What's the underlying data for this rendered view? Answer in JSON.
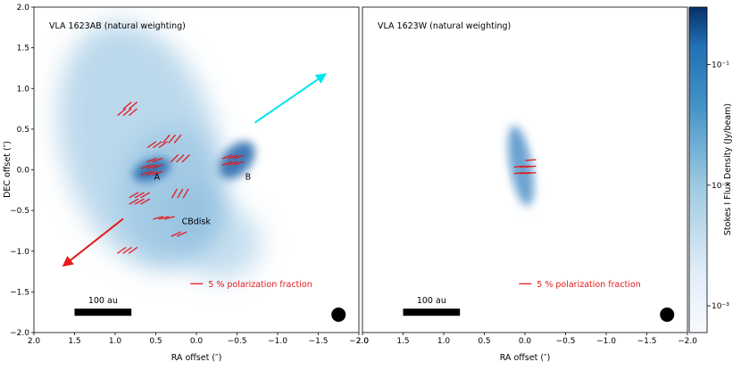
{
  "chart_data": {
    "type": "heatmap",
    "colors": {
      "vector": "#e41a1c",
      "outflow_arrow_cyan": "#00e5ee",
      "outflow_arrow_red": "#e41a1c",
      "colormap_low": "#f7fbff",
      "colormap_high": "#08306b"
    },
    "xlabel": "RA offset (″)",
    "ylabel": "DEC offset (″)",
    "xlim": [
      2.0,
      -2.0
    ],
    "ylim": [
      -2.0,
      2.0
    ],
    "x_ticks": [
      "2.0",
      "1.5",
      "1.0",
      "0.5",
      "0.0",
      "−0.5",
      "−1.0",
      "−1.5",
      "−2.0"
    ],
    "y_ticks": [
      "2.0",
      "1.5",
      "1.0",
      "0.5",
      "0.0",
      "−0.5",
      "−1.0",
      "−1.5",
      "−2.0"
    ],
    "colorbar": {
      "label": "Stokes I Flux Density (Jy/beam)",
      "scale": "log",
      "tick_labels": [
        "10⁻¹",
        "10⁻²",
        "10⁻³"
      ],
      "tick_values": [
        0.1,
        0.01,
        0.001
      ],
      "range": [
        0.0006,
        0.3
      ]
    },
    "panels": [
      {
        "title": "VLA 1623AB (natural weighting)",
        "scalebar_label": "100 au",
        "scalebar_x": [
          1.5,
          0.8
        ],
        "scalebar_y": -1.75,
        "pol_legend": "5 % polarization fraction",
        "pol_legend_pos": [
          -0.08,
          -1.4
        ],
        "beam_pos": [
          -1.75,
          -1.78
        ],
        "sources": [
          {
            "label": "A",
            "x": 0.52,
            "y": -0.12
          },
          {
            "label": "B",
            "x": -0.6,
            "y": -0.12
          },
          {
            "label": "CBdisk",
            "x": 0.18,
            "y": -0.67
          }
        ],
        "arrows": [
          {
            "color": "cyan",
            "from": [
              -0.72,
              0.58
            ],
            "to": [
              -1.55,
              1.15
            ]
          },
          {
            "color": "red",
            "from": [
              0.9,
              -0.6
            ],
            "to": [
              1.6,
              -1.15
            ]
          }
        ],
        "blobs": [
          {
            "x": 0.7,
            "y": 0.3,
            "sx": 0.95,
            "sy": 1.55,
            "angle": -15,
            "amp": 0.35
          },
          {
            "x": 0.3,
            "y": -0.3,
            "sx": 0.65,
            "sy": 0.85,
            "angle": 0,
            "amp": 0.3
          },
          {
            "x": 0.55,
            "y": 0.0,
            "sx": 0.24,
            "sy": 0.13,
            "angle": -20,
            "amp": 1.0
          },
          {
            "x": -0.3,
            "y": -0.9,
            "sx": 0.5,
            "sy": 0.45,
            "angle": 0,
            "amp": 0.25
          },
          {
            "x": -0.5,
            "y": 0.12,
            "sx": 0.17,
            "sy": 0.27,
            "angle": 42,
            "amp": 0.85
          },
          {
            "x": 0.05,
            "y": -0.5,
            "sx": 0.4,
            "sy": 0.35,
            "angle": 0,
            "amp": 0.3
          }
        ],
        "vector_groups": [
          {
            "x": 0.85,
            "y": 0.75,
            "angle": 40,
            "n": 5
          },
          {
            "x": 0.48,
            "y": 0.35,
            "angle": 35,
            "n": 3
          },
          {
            "x": 0.3,
            "y": 0.42,
            "angle": 50,
            "n": 3
          },
          {
            "x": 0.2,
            "y": 0.18,
            "angle": 45,
            "n": 3
          },
          {
            "x": 0.55,
            "y": 0.0,
            "angle": 20,
            "n": 8
          },
          {
            "x": 0.7,
            "y": -0.35,
            "angle": 30,
            "n": 6
          },
          {
            "x": 0.4,
            "y": -0.55,
            "angle": 15,
            "n": 3
          },
          {
            "x": 0.25,
            "y": -0.75,
            "angle": 25,
            "n": 2
          },
          {
            "x": 0.2,
            "y": -0.25,
            "angle": 60,
            "n": 3
          },
          {
            "x": -0.45,
            "y": 0.12,
            "angle": 20,
            "n": 6
          },
          {
            "x": 0.85,
            "y": -0.95,
            "angle": 35,
            "n": 3
          }
        ]
      },
      {
        "title": "VLA 1623W (natural weighting)",
        "scalebar_label": "100 au",
        "scalebar_x": [
          1.5,
          0.8
        ],
        "scalebar_y": -1.75,
        "pol_legend": "5 % polarization fraction",
        "pol_legend_pos": [
          -0.08,
          -1.4
        ],
        "beam_pos": [
          -1.75,
          -1.78
        ],
        "sources": [],
        "arrows": [],
        "blobs": [
          {
            "x": 0.05,
            "y": 0.05,
            "sx": 0.13,
            "sy": 0.5,
            "angle": -10,
            "amp": 0.6
          },
          {
            "x": 0.05,
            "y": 0.0,
            "sx": 0.08,
            "sy": 0.32,
            "angle": -10,
            "amp": 0.3
          }
        ],
        "vector_groups": [
          {
            "x": 0.0,
            "y": 0.0,
            "angle": 5,
            "n": 7
          }
        ]
      }
    ]
  }
}
